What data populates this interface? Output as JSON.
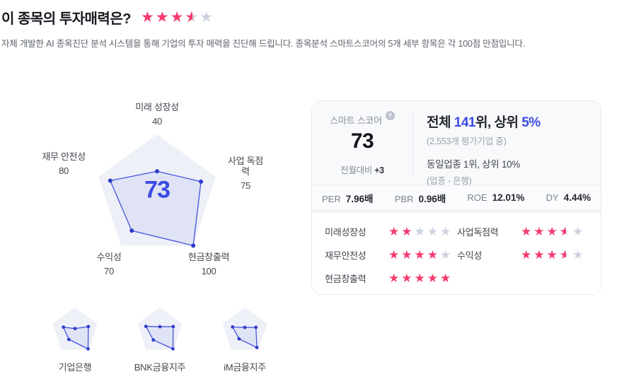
{
  "header": {
    "title": "이 종목의 투자매력은?",
    "rating": 3.5,
    "description": "자체 개발한 AI 종목진단 분석 시스템을 통해 기업의 투자 매력을 진단해 드립니다. 종목분석 스마트스코어의 5개 세부 항목은 각 100점 만점입니다."
  },
  "colors": {
    "accent_blue": "#3b4ae4",
    "radar_stroke": "#4553e0",
    "radar_dot": "#2e3cc8",
    "radar_fill": "#ccd3f1",
    "pentagon_bg": "#eef0f7",
    "star_pink": "#f43b6e",
    "star_gray": "#ccd3df"
  },
  "chart_data": [
    {
      "type": "radar",
      "title": "스마트스코어",
      "categories": [
        "미래 성장성",
        "사업 독점력",
        "현금창출력",
        "수익성",
        "재무 안전성"
      ],
      "values": [
        40,
        75,
        100,
        70,
        80
      ],
      "value_max": 100,
      "center_score": "73"
    },
    {
      "type": "radar",
      "title": "기업은행",
      "categories": [
        "미래 성장성",
        "사업 독점력",
        "현금창출력",
        "수익성",
        "재무 안전성"
      ],
      "values": [
        10,
        60,
        95,
        45,
        52
      ],
      "value_max": 100
    },
    {
      "type": "radar",
      "title": "BNK금융지주",
      "categories": [
        "미래 성장성",
        "사업 독점력",
        "현금창출력",
        "수익성",
        "재무 안전성"
      ],
      "values": [
        18,
        60,
        95,
        48,
        63
      ],
      "value_max": 100
    },
    {
      "type": "radar",
      "title": "iM금융지주",
      "categories": [
        "미래 성장성",
        "사업 독점력",
        "현금창출력",
        "수익성",
        "재무 안전성"
      ],
      "values": [
        15,
        50,
        88,
        42,
        55
      ],
      "value_max": 100
    }
  ],
  "peers": [
    {
      "name": "기업은행"
    },
    {
      "name": "BNK금융지주"
    },
    {
      "name": "iM금융지주"
    }
  ],
  "score_card": {
    "smart_score_label": "스마트 스코어",
    "help_icon": "?",
    "score": "73",
    "mom_label": "전월대비",
    "mom_value": "+3",
    "rank_overall": {
      "pre": "전체 ",
      "rank": "141",
      "mid": "위, 상위 ",
      "pct": "5%"
    },
    "rank_overall_sub": "(2,553개 평가기업 중)",
    "rank_sector": "동일업종 1위, 상위 10%",
    "rank_sector_sub": "(업종 - 은행)",
    "metrics": [
      {
        "label": "PER",
        "value": "7.96배"
      },
      {
        "label": "PBR",
        "value": "0.96배"
      },
      {
        "label": "ROE",
        "value": "12.01%"
      },
      {
        "label": "DY",
        "value": "4.44%"
      }
    ],
    "ratings": [
      {
        "label": "미래성장성",
        "stars": 2
      },
      {
        "label": "사업독점력",
        "stars": 3.5
      },
      {
        "label": "재무안전성",
        "stars": 4
      },
      {
        "label": "수익성",
        "stars": 3.5
      },
      {
        "label": "현금창출력",
        "stars": 5
      }
    ]
  }
}
